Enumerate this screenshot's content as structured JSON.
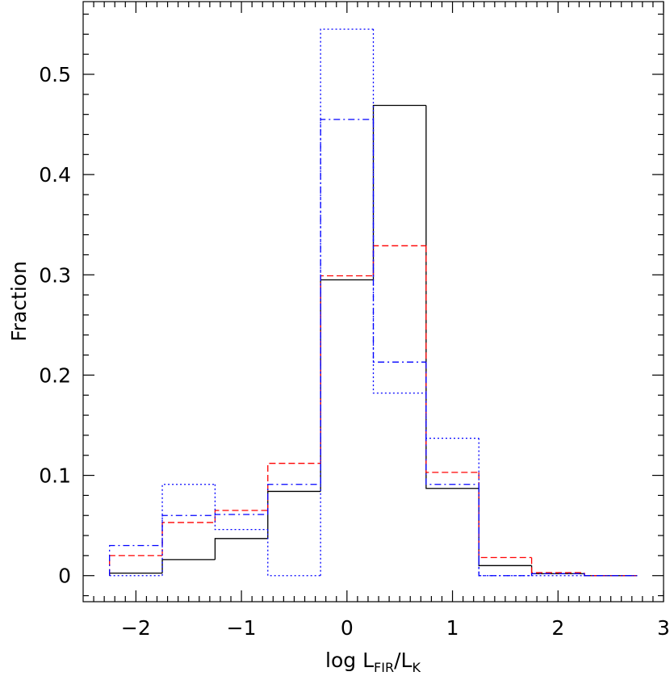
{
  "chart_data": {
    "type": "histogram",
    "ylabel": "Fraction",
    "xlabel_parts": [
      "log  L",
      "FIR",
      "/L",
      "K"
    ],
    "bins": [
      -2.25,
      -1.75,
      -1.25,
      -0.75,
      -0.25,
      0.25,
      0.75,
      1.25,
      1.75,
      2.25,
      2.75
    ],
    "series": [
      {
        "color": "#000000",
        "dash": "solid",
        "values": [
          0.0025,
          0.016,
          0.037,
          0.084,
          0.295,
          0.469,
          0.087,
          0.01,
          0.002,
          0.0
        ]
      },
      {
        "color": "#ff0000",
        "dash": "dashed",
        "values": [
          0.02,
          0.053,
          0.065,
          0.112,
          0.299,
          0.329,
          0.103,
          0.018,
          0.003,
          0.0
        ]
      },
      {
        "color": "#0000ff",
        "dash": "dashdot",
        "values": [
          0.03,
          0.06,
          0.061,
          0.091,
          0.455,
          0.213,
          0.091,
          0.0,
          0.002,
          0.0
        ]
      },
      {
        "color": "#0000ff",
        "dash": "dotted",
        "values": [
          0.0,
          0.091,
          0.046,
          0.0,
          0.545,
          0.182,
          0.137,
          0.0,
          0.0,
          0.0
        ]
      }
    ],
    "xlim": [
      -2.5,
      3
    ],
    "ylim": [
      -0.026,
      0.5725
    ],
    "xticks": [
      {
        "value": -2,
        "label": "−2"
      },
      {
        "value": -1,
        "label": "−1"
      },
      0,
      1,
      2,
      3
    ],
    "yticks": [
      0,
      0.1,
      0.2,
      0.3,
      0.4,
      0.5
    ],
    "xminorticks": [
      -2.4,
      -2.3,
      -2.2,
      -2.1,
      -1.9,
      -1.8,
      -1.7,
      -1.6,
      -1.5,
      -1.4,
      -1.3,
      -1.2,
      -1.1,
      -0.9,
      -0.8,
      -0.7,
      -0.6,
      -0.5,
      -0.4,
      -0.3,
      -0.2,
      -0.1,
      0.1,
      0.2,
      0.3,
      0.4,
      0.5,
      0.6,
      0.7,
      0.8,
      0.9,
      1.1,
      1.2,
      1.3,
      1.4,
      1.5,
      1.6,
      1.7,
      1.8,
      1.9,
      2.1,
      2.2,
      2.3,
      2.4,
      2.5,
      2.6,
      2.7,
      2.8,
      2.9
    ],
    "yminorticks": [
      -0.02,
      0.02,
      0.04,
      0.06,
      0.08,
      0.12,
      0.14,
      0.16,
      0.18,
      0.22,
      0.24,
      0.26,
      0.28,
      0.32,
      0.34,
      0.36,
      0.38,
      0.42,
      0.44,
      0.46,
      0.48,
      0.52,
      0.54,
      0.56
    ]
  }
}
